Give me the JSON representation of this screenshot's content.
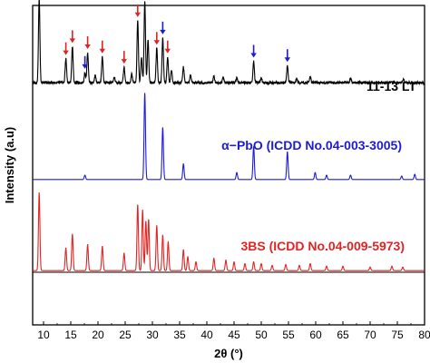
{
  "chart_data": {
    "type": "line",
    "xlabel": "2θ (°)",
    "ylabel": "Intensity (a.u)",
    "xlim": [
      8,
      80
    ],
    "x_ticks": [
      10,
      15,
      20,
      25,
      30,
      35,
      40,
      45,
      50,
      55,
      60,
      65,
      70,
      75,
      80
    ],
    "y_ticks": [],
    "grid": false,
    "series": [
      {
        "name": "11-13 LT",
        "color": "#000000",
        "baseline": 0.755,
        "peaks": [
          [
            9.2,
            0.98
          ],
          [
            14.1,
            0.28
          ],
          [
            15.3,
            0.42
          ],
          [
            17.6,
            0.12
          ],
          [
            18.1,
            0.35
          ],
          [
            19.5,
            0.08
          ],
          [
            20.8,
            0.3
          ],
          [
            23.0,
            0.06
          ],
          [
            24.8,
            0.18
          ],
          [
            26.2,
            0.1
          ],
          [
            27.3,
            0.72
          ],
          [
            28.0,
            0.3
          ],
          [
            28.6,
            0.95
          ],
          [
            29.2,
            0.5
          ],
          [
            30.8,
            0.4
          ],
          [
            31.9,
            0.52
          ],
          [
            32.8,
            0.3
          ],
          [
            33.5,
            0.15
          ],
          [
            35.7,
            0.18
          ],
          [
            37.0,
            0.08
          ],
          [
            41.3,
            0.08
          ],
          [
            43.0,
            0.06
          ],
          [
            45.5,
            0.06
          ],
          [
            48.6,
            0.25
          ],
          [
            50.0,
            0.06
          ],
          [
            54.8,
            0.2
          ],
          [
            56.5,
            0.05
          ],
          [
            59.0,
            0.07
          ],
          [
            66.4,
            0.05
          ],
          [
            76.1,
            0.05
          ]
        ]
      },
      {
        "name": "α−PbO (ICDD No.04-003-3005)",
        "color": "#1c1cd6",
        "baseline": 0.455,
        "peaks": [
          [
            17.6,
            0.05
          ],
          [
            28.6,
            1.0
          ],
          [
            31.9,
            0.6
          ],
          [
            35.7,
            0.18
          ],
          [
            45.5,
            0.08
          ],
          [
            48.6,
            0.38
          ],
          [
            54.8,
            0.32
          ],
          [
            59.9,
            0.08
          ],
          [
            62.0,
            0.05
          ],
          [
            66.4,
            0.05
          ],
          [
            75.8,
            0.04
          ],
          [
            78.2,
            0.06
          ]
        ]
      },
      {
        "name": "3BS (ICDD No.04-009-5973)",
        "color": "#e02424",
        "baseline": 0.17,
        "peaks": [
          [
            9.2,
            0.9
          ],
          [
            14.1,
            0.26
          ],
          [
            15.3,
            0.42
          ],
          [
            18.1,
            0.3
          ],
          [
            20.8,
            0.28
          ],
          [
            24.8,
            0.2
          ],
          [
            27.3,
            0.76
          ],
          [
            28.2,
            0.7
          ],
          [
            28.8,
            0.57
          ],
          [
            29.3,
            0.59
          ],
          [
            30.8,
            0.52
          ],
          [
            31.9,
            0.41
          ],
          [
            32.9,
            0.33
          ],
          [
            35.7,
            0.24
          ],
          [
            36.5,
            0.16
          ],
          [
            38.0,
            0.1
          ],
          [
            41.3,
            0.14
          ],
          [
            43.5,
            0.12
          ],
          [
            45.0,
            0.1
          ],
          [
            47.0,
            0.08
          ],
          [
            48.6,
            0.1
          ],
          [
            50.0,
            0.08
          ],
          [
            52.0,
            0.06
          ],
          [
            54.5,
            0.07
          ],
          [
            57.0,
            0.06
          ],
          [
            59.0,
            0.08
          ],
          [
            62.0,
            0.05
          ],
          [
            65.0,
            0.05
          ],
          [
            70.0,
            0.04
          ],
          [
            74.0,
            0.05
          ],
          [
            76.0,
            0.04
          ]
        ]
      }
    ],
    "markers": [
      {
        "color": "#e02424",
        "series": "11-13 LT",
        "x": [
          9.2,
          14.1,
          15.3,
          18.1,
          20.8,
          24.8,
          27.3,
          30.8,
          32.8
        ]
      },
      {
        "color": "#1c1cd6",
        "series": "11-13 LT",
        "x": [
          17.6,
          28.6,
          31.9,
          48.6,
          54.8
        ]
      }
    ]
  }
}
